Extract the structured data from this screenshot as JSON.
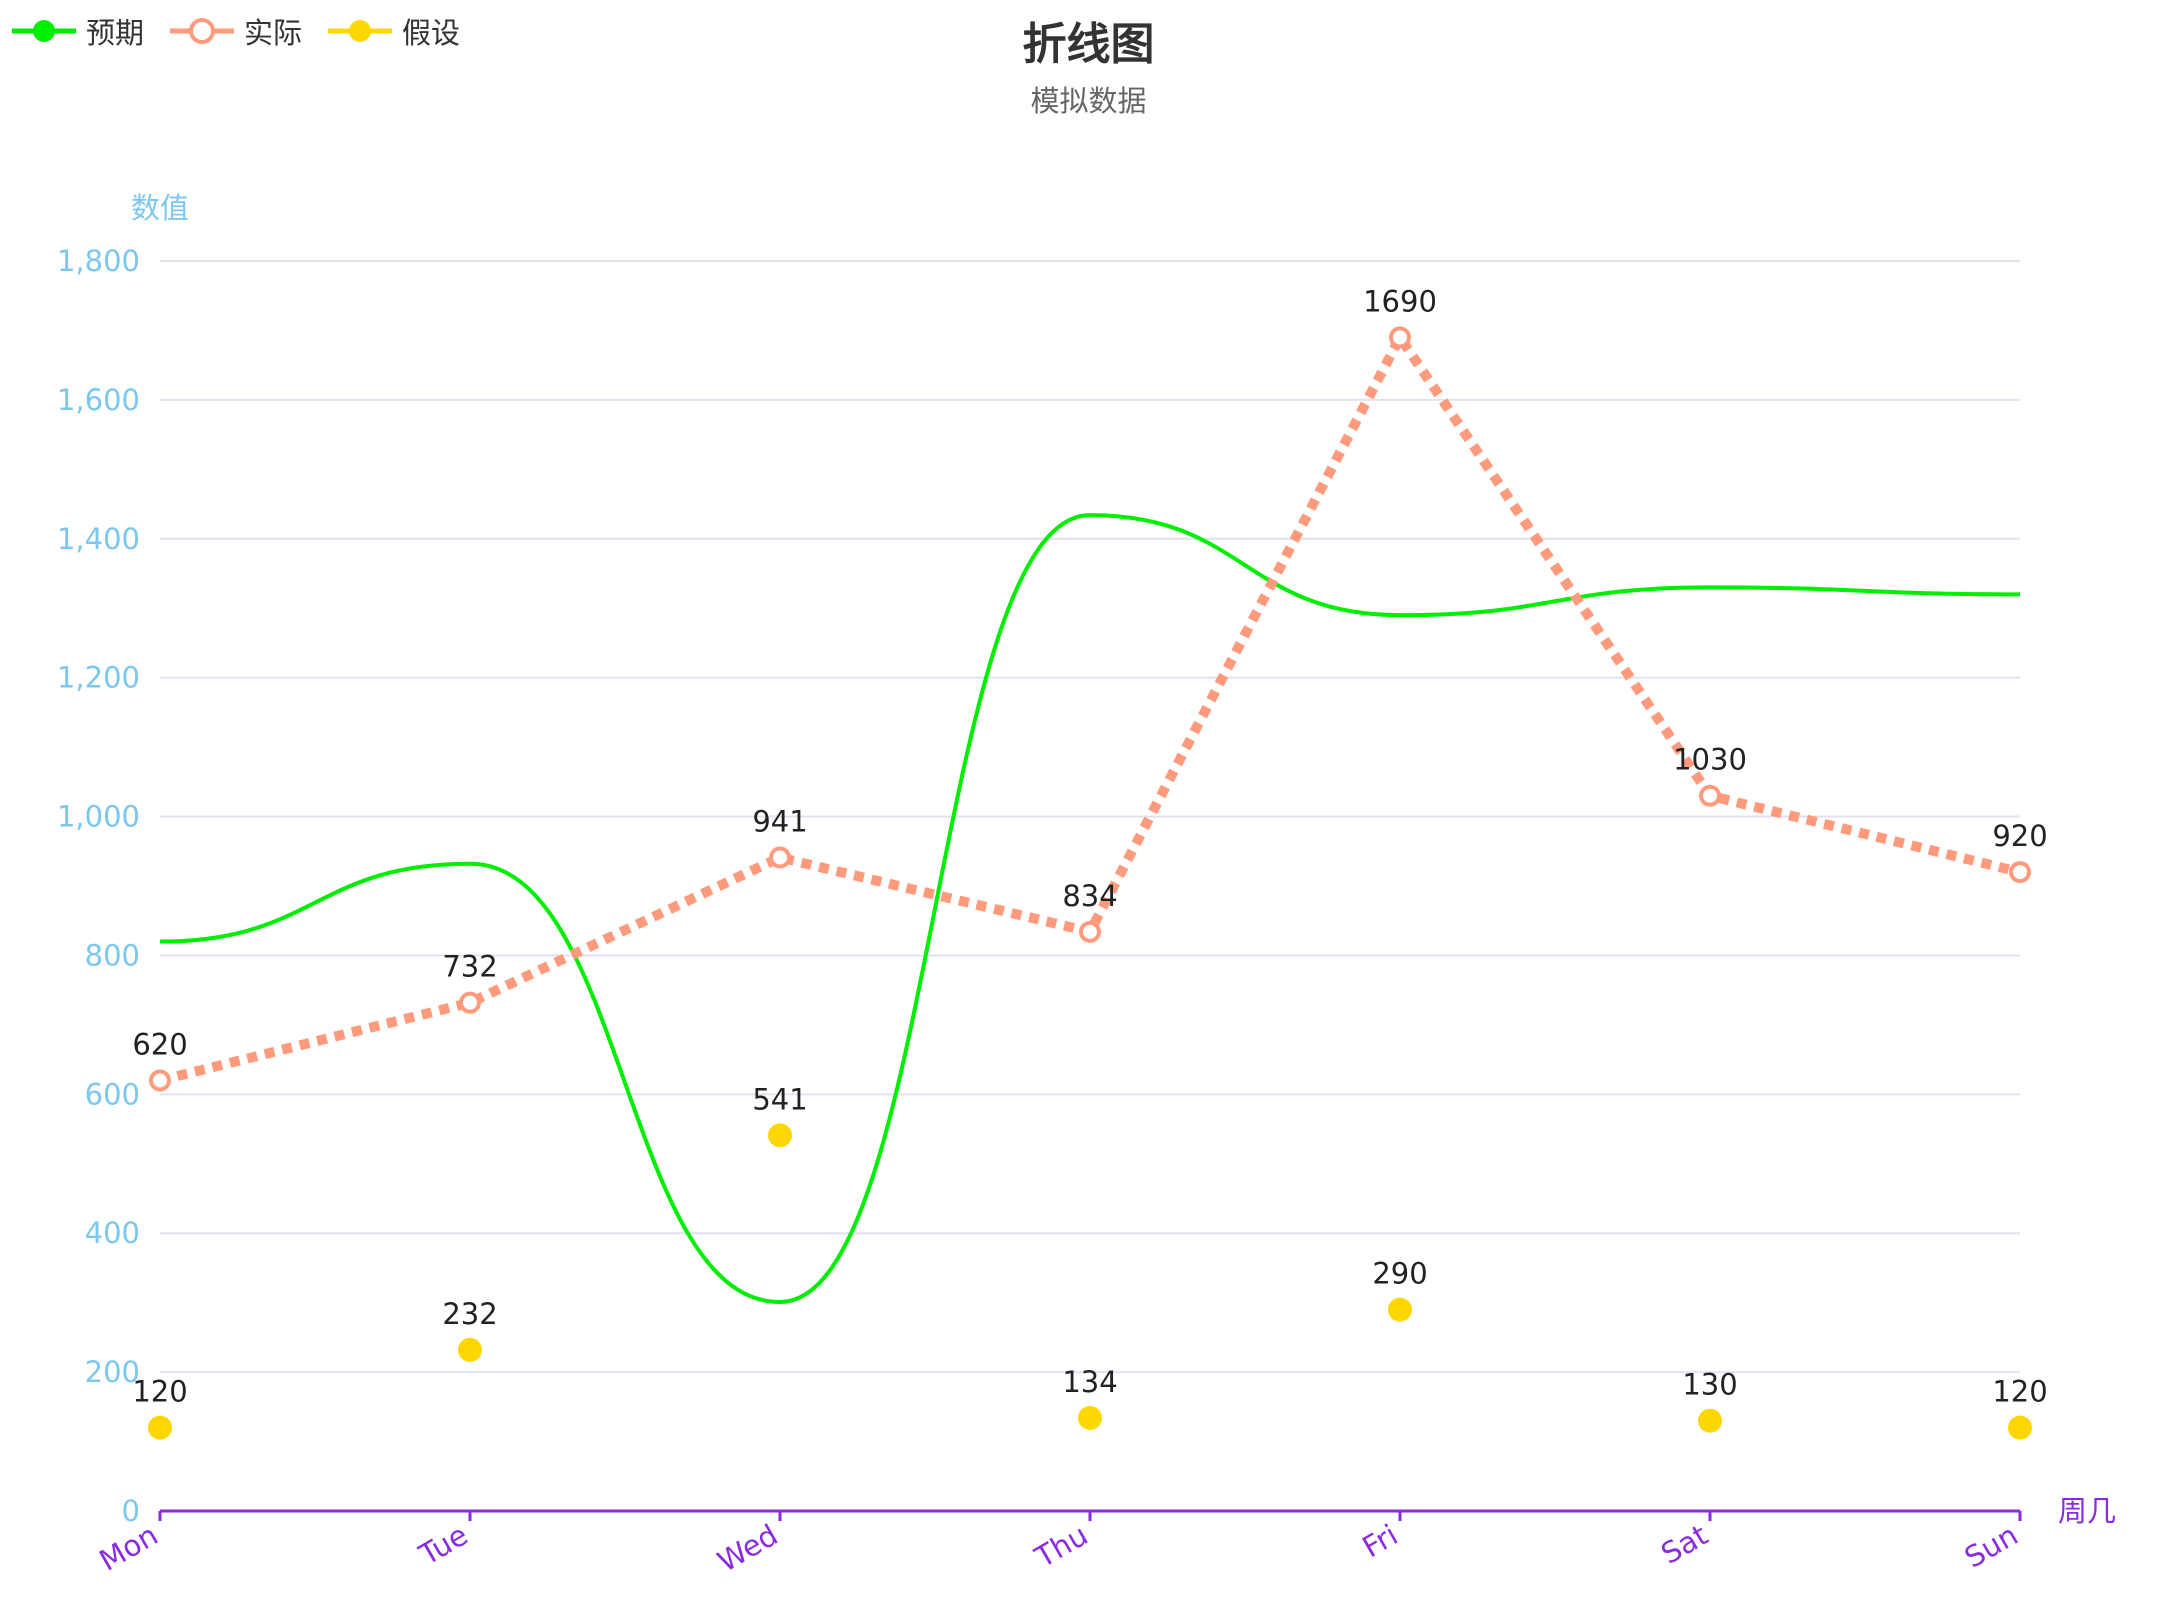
{
  "chart_data": {
    "type": "line",
    "title": "折线图",
    "subtitle": "模拟数据",
    "xlabel": "周几",
    "ylabel": "数值",
    "categories": [
      "Mon",
      "Tue",
      "Wed",
      "Thu",
      "Fri",
      "Sat",
      "Sun"
    ],
    "ylim": [
      0,
      1800
    ],
    "yticks": [
      "0",
      "200",
      "400",
      "600",
      "800",
      "1,000",
      "1,200",
      "1,400",
      "1,600",
      "1,800"
    ],
    "grid": true,
    "legend_position": "top-left",
    "series": [
      {
        "name": "预期",
        "values": [
          820,
          932,
          301,
          1434,
          1290,
          1330,
          1320
        ],
        "style": "smooth-line",
        "color": "#00ee00"
      },
      {
        "name": "实际",
        "values": [
          620,
          732,
          941,
          834,
          1690,
          1030,
          920
        ],
        "style": "dashed-line-hollow-markers",
        "color": "#ff9b7c"
      },
      {
        "name": "假设",
        "values": [
          120,
          232,
          541,
          134,
          290,
          130,
          120
        ],
        "style": "scatter",
        "color": "#ffd700"
      }
    ],
    "data_labels": {
      "实际": [
        "620",
        "732",
        "941",
        "834",
        "1690",
        "1030",
        "920"
      ],
      "假设": [
        "120",
        "232",
        "541",
        "134",
        "290",
        "130",
        "120"
      ]
    },
    "colors": {
      "y_axis_text": "#7cc7ef",
      "x_axis": "#8a2be2",
      "grid": "#e0e3ef"
    }
  }
}
